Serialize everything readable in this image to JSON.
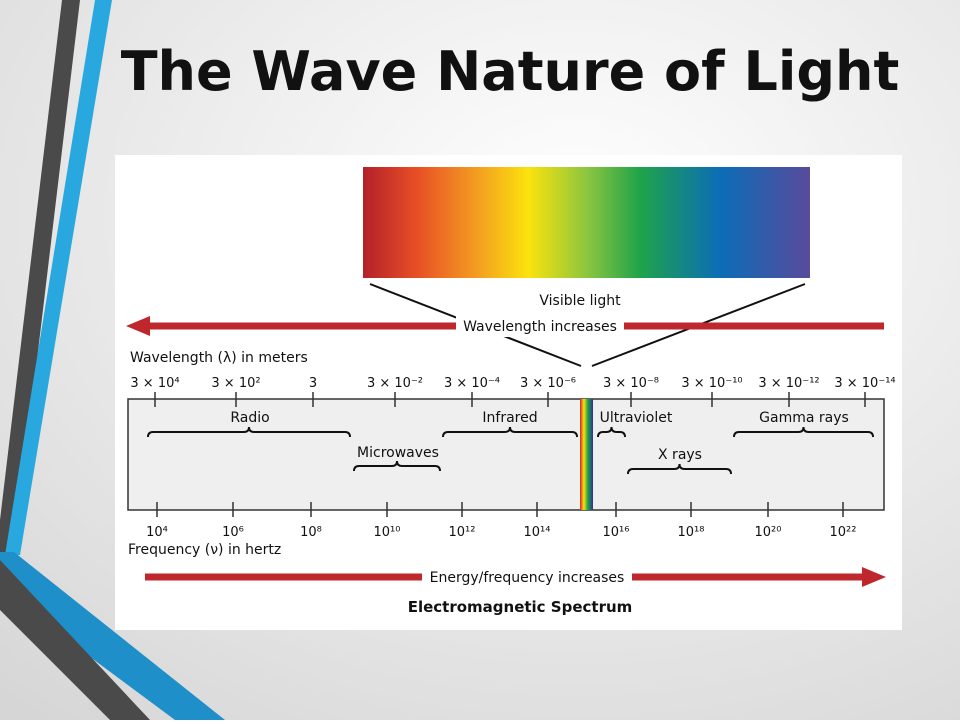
{
  "slide": {
    "title": "The Wave Nature of Light"
  },
  "figure": {
    "visible_label": "Visible light",
    "wavelength_arrow": "Wavelength increases",
    "wavelength_axis": "Wavelength (λ) in meters",
    "wavelength_ticks": [
      "3 × 10⁴",
      "3 × 10²",
      "3",
      "3 × 10⁻²",
      "3 × 10⁻⁴",
      "3 × 10⁻⁶",
      "3 × 10⁻⁸",
      "3 × 10⁻¹⁰",
      "3 × 10⁻¹²",
      "3 × 10⁻¹⁴"
    ],
    "regions": [
      "Radio",
      "Microwaves",
      "Infrared",
      "Ultraviolet",
      "X rays",
      "Gamma rays"
    ],
    "frequency_ticks": [
      "10⁴",
      "10⁶",
      "10⁸",
      "10¹⁰",
      "10¹²",
      "10¹⁴",
      "10¹⁶",
      "10¹⁸",
      "10²⁰",
      "10²²"
    ],
    "frequency_axis": "Frequency (ν) in hertz",
    "energy_arrow": "Energy/frequency increases",
    "caption": "Electromagnetic Spectrum"
  }
}
